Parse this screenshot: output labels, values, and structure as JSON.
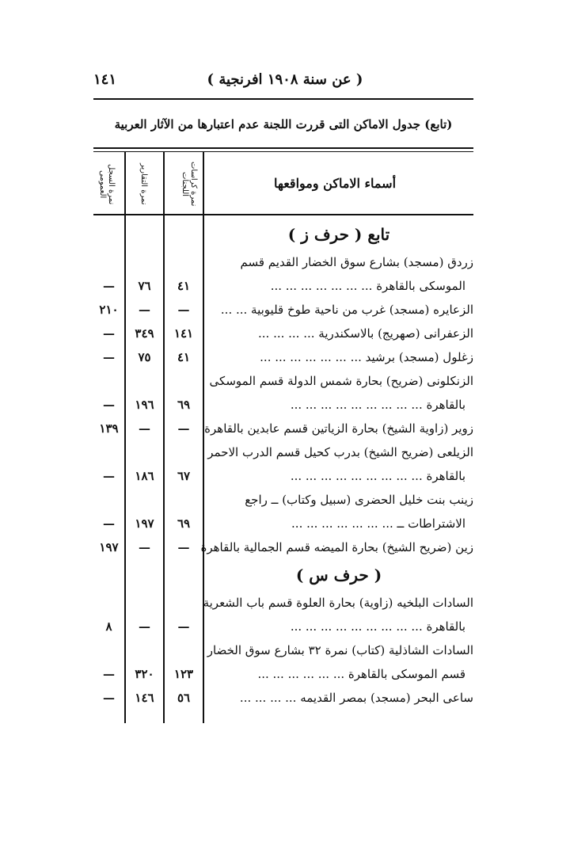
{
  "header": {
    "page_number": "١٤١",
    "title": "( عن سنة ١٩٠٨ افرنجية )"
  },
  "subtitle": "(تابع) جدول الاماكن التى قررت اللجنة عدم اعتبارها من الآثار العربية",
  "table": {
    "columns": [
      "أسماء الاماكن ومواقعها",
      "نمرة كراسات اللجنات",
      "نمرة التقارير",
      "نمرة السجل العمومى"
    ],
    "rows": [
      {
        "heading": "تابع ( حرف ز )"
      },
      {
        "name": [
          "زردق (مسجد) بشارع سوق الخضار القديم قسم",
          "الموسكى بالقاهرة ... ... ... ... ... ... ..."
        ],
        "cells": [
          "٤١",
          "٧٦",
          "—"
        ]
      },
      {
        "name": [
          "الزعايره (مسجد) غرب من ناحية طوخ قليوبية ... ..."
        ],
        "cells": [
          "—",
          "—",
          "٢١٠"
        ]
      },
      {
        "name": [
          "الزعفرانى (صهريج) بالاسكندرية ... ... ... ..."
        ],
        "cells": [
          "١٤١",
          "٣٤٩",
          "—"
        ]
      },
      {
        "name": [
          "زغلول (مسجد) برشيد ... ... ... ... ... ... ..."
        ],
        "cells": [
          "٤١",
          "٧٥",
          "—"
        ]
      },
      {
        "name": [
          "الزنكلونى (ضريح) بحارة شمس الدولة قسم الموسكى",
          "بالقاهرة ... ... ... ... ... ... ... ... ..."
        ],
        "cells": [
          "٦٩",
          "١٩٦",
          "—"
        ]
      },
      {
        "name": [
          "زوير (زاوية الشيخ) بحارة الزياتين قسم عابدين بالقاهرة"
        ],
        "cells": [
          "—",
          "—",
          "١٣٩"
        ]
      },
      {
        "name": [
          "الزيلعى (ضريح الشيخ) بدرب كحيل قسم الدرب الاحمر",
          "بالقاهرة ... ... ... ... ... ... ... ... ..."
        ],
        "cells": [
          "٦٧",
          "١٨٦",
          "—"
        ]
      },
      {
        "name": [
          "زينب بنت خليل الحضرى (سبيل وكتاب) ــ راجع",
          "الاشتراطات ــ ... ... ... ... ... ... ..."
        ],
        "cells": [
          "٦٩",
          "١٩٧",
          "—"
        ]
      },
      {
        "name": [
          "زين (ضريح الشيخ) بحارة الميضه قسم الجمالية بالقاهرة"
        ],
        "cells": [
          "—",
          "—",
          "١٩٧"
        ]
      },
      {
        "heading": "( حرف س )"
      },
      {
        "name": [
          "السادات البلخيه (زاوية) بحارة العلوة قسم باب الشعرية",
          "بالقاهرة ... ... ... ... ... ... ... ... ..."
        ],
        "cells": [
          "—",
          "—",
          "٨"
        ]
      },
      {
        "name": [
          "السادات الشاذلية (كتاب) نمرة ٣٢ بشارع سوق الخضار",
          "قسم الموسكى بالقاهرة ... ... ... ... ... ..."
        ],
        "cells": [
          "١٢٣",
          "٣٢٠",
          "—"
        ]
      },
      {
        "name": [
          "ساعى البحر (مسجد) بمصر القديمه ... ... ... ..."
        ],
        "cells": [
          "٥٦",
          "١٤٦",
          "—"
        ]
      }
    ]
  }
}
